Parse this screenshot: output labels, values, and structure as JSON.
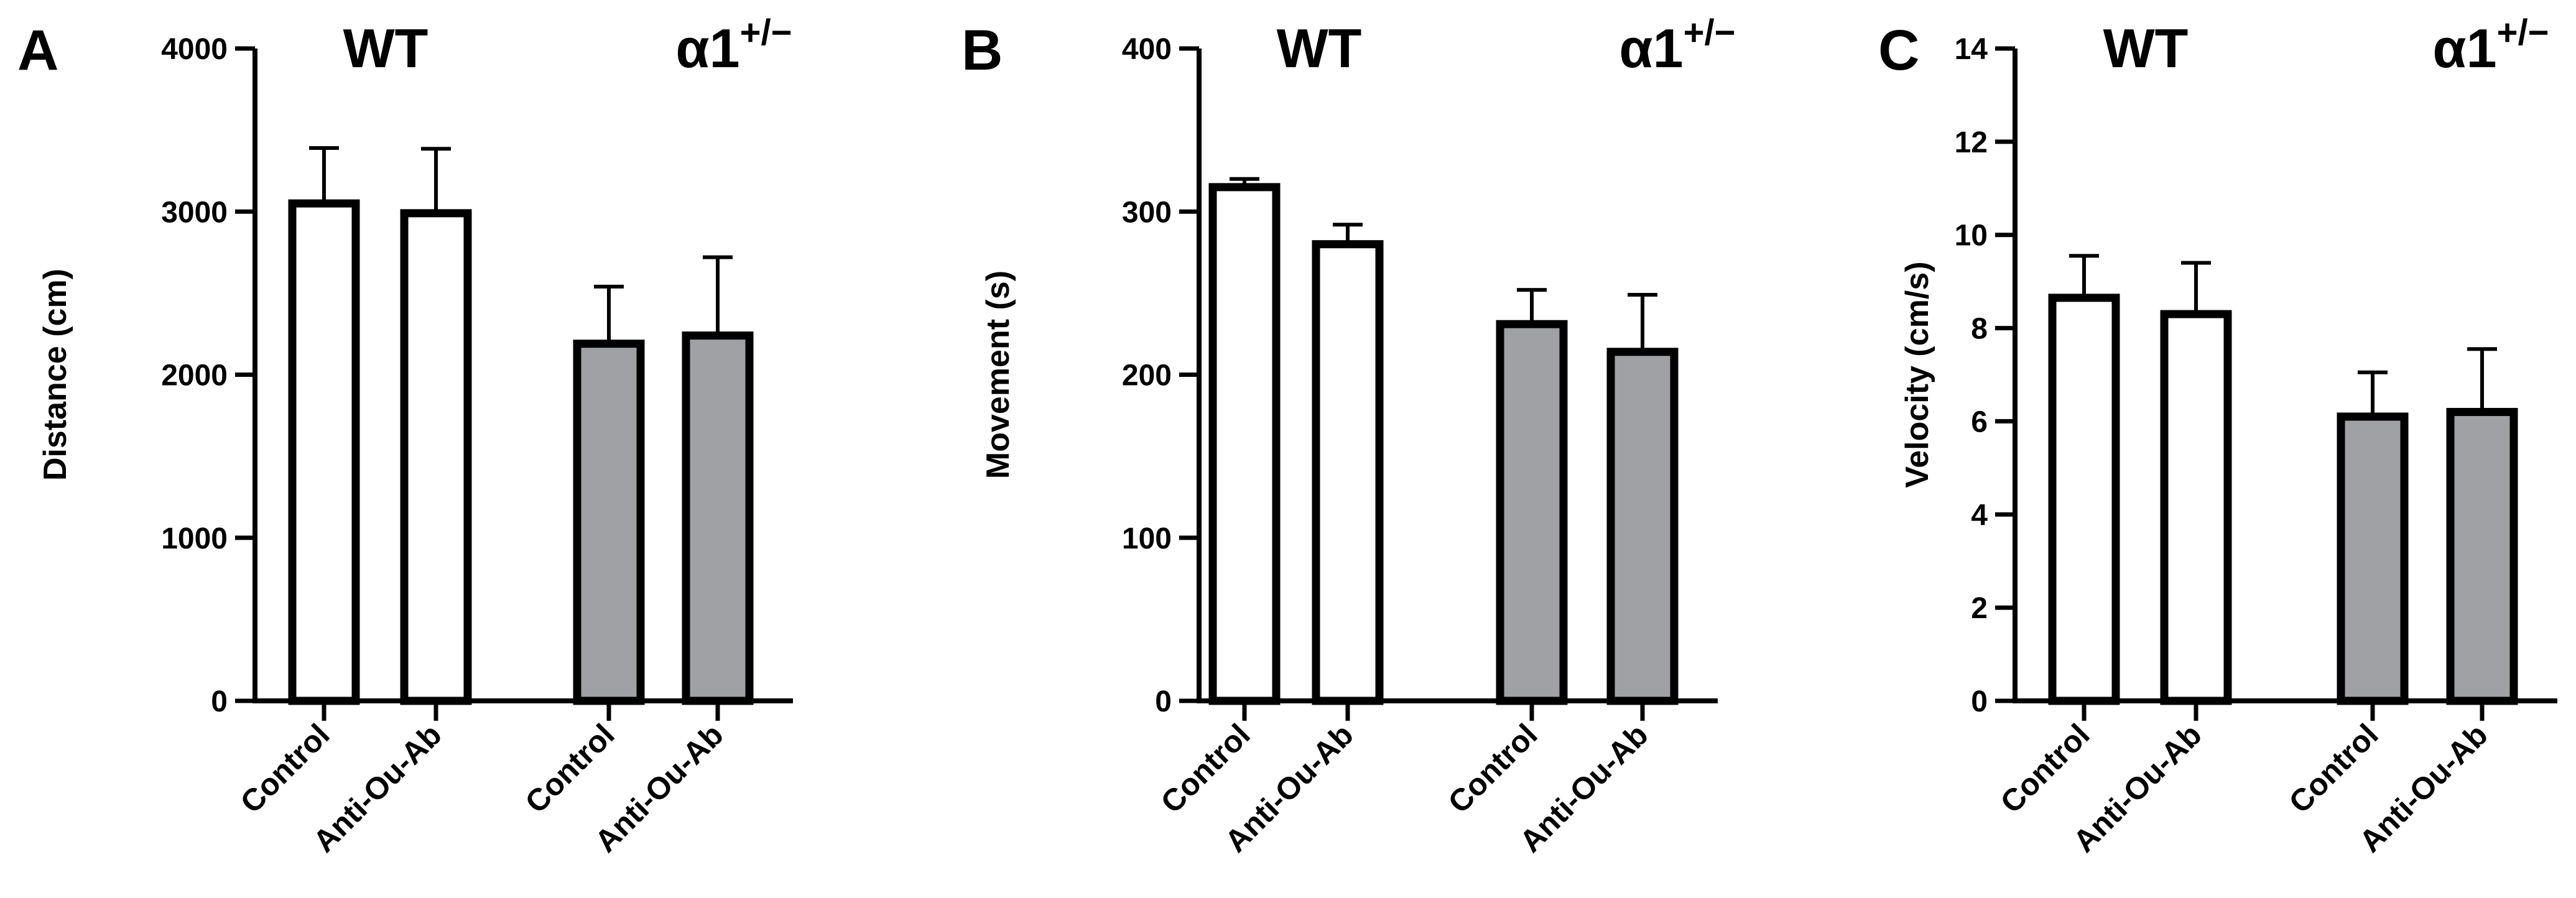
{
  "colors": {
    "wt_fill": "#ffffff",
    "het_fill": "#a0a1a5",
    "stroke": "#000000"
  },
  "chart_data": [
    {
      "type": "bar",
      "panel": "A",
      "ylabel": "Distance (cm)",
      "ylim": [
        0,
        4000
      ],
      "yticks": [
        "0",
        "1000",
        "2000",
        "3000",
        "4000"
      ],
      "groups": [
        {
          "name": "WT",
          "sup": ""
        },
        {
          "name": "α1",
          "sup": "+/−"
        }
      ],
      "categories": [
        "Control",
        "Anti-Ou-Ab",
        "Control",
        "Anti-Ou-Ab"
      ],
      "values": [
        3050,
        2990,
        2190,
        2240
      ],
      "errors": [
        340,
        395,
        350,
        480
      ],
      "grid": false
    },
    {
      "type": "bar",
      "panel": "B",
      "ylabel": "Movement (s)",
      "ylim": [
        0,
        400
      ],
      "yticks": [
        "0",
        "100",
        "200",
        "300",
        "400"
      ],
      "groups": [
        {
          "name": "WT",
          "sup": ""
        },
        {
          "name": "α1",
          "sup": "+/−"
        }
      ],
      "categories": [
        "Control",
        "Anti-Ou-Ab",
        "Control",
        "Anti-Ou-Ab"
      ],
      "values": [
        315,
        280,
        231,
        214
      ],
      "errors": [
        5,
        12,
        21,
        35
      ],
      "grid": false
    },
    {
      "type": "bar",
      "panel": "C",
      "ylabel": "Velocity (cm/s)",
      "ylim": [
        0,
        14
      ],
      "yticks": [
        "0",
        "2",
        "4",
        "6",
        "8",
        "10",
        "12",
        "14"
      ],
      "groups": [
        {
          "name": "WT",
          "sup": ""
        },
        {
          "name": "α1",
          "sup": "+/−"
        }
      ],
      "categories": [
        "Control",
        "Anti-Ou-Ab",
        "Control",
        "Anti-Ou-Ab"
      ],
      "values": [
        8.65,
        8.3,
        6.1,
        6.2
      ],
      "errors": [
        0.9,
        1.1,
        0.95,
        1.35
      ],
      "grid": false
    }
  ]
}
